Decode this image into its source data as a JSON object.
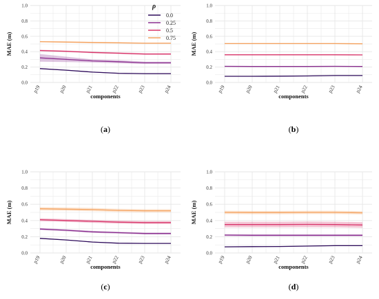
{
  "chart_data": [
    {
      "type": "line",
      "panel_label": "(a)",
      "xlabel": "components",
      "ylabel": "MAE (m)",
      "categories": [
        "p19",
        "p20",
        "p21",
        "p22",
        "p23",
        "p24"
      ],
      "ylim": [
        0,
        1.0
      ],
      "yticks": [
        "0.0",
        "0.2",
        "0.4",
        "0.6",
        "0.8",
        "1.0"
      ],
      "grid": true,
      "legend": {
        "title": "ρ",
        "placement": "top-right",
        "entries": [
          "0.0",
          "0.25",
          "0.5",
          "0.75"
        ]
      },
      "series": [
        {
          "name": "0.0",
          "values": [
            0.18,
            0.16,
            0.135,
            0.12,
            0.115,
            0.115
          ],
          "band": [
            0.005,
            0.005,
            0.005,
            0.005,
            0.005,
            0.005
          ]
        },
        {
          "name": "0.25",
          "values": [
            0.32,
            0.3,
            0.28,
            0.27,
            0.255,
            0.255
          ],
          "band": [
            0.05,
            0.035,
            0.02,
            0.02,
            0.015,
            0.015
          ]
        },
        {
          "name": "0.5",
          "values": [
            0.415,
            0.405,
            0.39,
            0.38,
            0.37,
            0.37
          ],
          "band": [
            0.01,
            0.01,
            0.01,
            0.01,
            0.01,
            0.01
          ]
        },
        {
          "name": "0.75",
          "values": [
            0.53,
            0.525,
            0.52,
            0.515,
            0.51,
            0.51
          ],
          "band": [
            0.008,
            0.008,
            0.008,
            0.008,
            0.008,
            0.008
          ]
        }
      ]
    },
    {
      "type": "line",
      "panel_label": "(b)",
      "xlabel": "components",
      "ylabel": "MAE (m)",
      "categories": [
        "p19",
        "p20",
        "p21",
        "p22",
        "p23",
        "p24"
      ],
      "ylim": [
        0,
        1.0
      ],
      "yticks": [
        "0.0",
        "0.2",
        "0.4",
        "0.6",
        "0.8",
        "1.0"
      ],
      "grid": true,
      "series": [
        {
          "name": "0.0",
          "values": [
            0.08,
            0.08,
            0.082,
            0.085,
            0.09,
            0.09
          ],
          "band": [
            0.003,
            0.003,
            0.003,
            0.003,
            0.003,
            0.003
          ]
        },
        {
          "name": "0.25",
          "values": [
            0.21,
            0.208,
            0.208,
            0.208,
            0.21,
            0.208
          ],
          "band": [
            0.006,
            0.006,
            0.006,
            0.006,
            0.006,
            0.006
          ]
        },
        {
          "name": "0.5",
          "values": [
            0.36,
            0.36,
            0.36,
            0.36,
            0.36,
            0.358
          ],
          "band": [
            0.006,
            0.006,
            0.006,
            0.006,
            0.006,
            0.006
          ]
        },
        {
          "name": "0.75",
          "values": [
            0.505,
            0.505,
            0.505,
            0.505,
            0.505,
            0.503
          ],
          "band": [
            0.006,
            0.006,
            0.006,
            0.006,
            0.006,
            0.006
          ]
        }
      ]
    },
    {
      "type": "line",
      "panel_label": "(c)",
      "xlabel": "components",
      "ylabel": "MAE (m)",
      "categories": [
        "p19",
        "p20",
        "p21",
        "p22",
        "p23",
        "p24"
      ],
      "ylim": [
        0,
        1.0
      ],
      "yticks": [
        "0.0",
        "0.2",
        "0.4",
        "0.6",
        "0.8",
        "1.0"
      ],
      "grid": true,
      "series": [
        {
          "name": "0.0",
          "values": [
            0.18,
            0.16,
            0.135,
            0.12,
            0.118,
            0.118
          ],
          "band": [
            0.004,
            0.004,
            0.004,
            0.004,
            0.004,
            0.004
          ]
        },
        {
          "name": "0.25",
          "values": [
            0.295,
            0.28,
            0.26,
            0.25,
            0.24,
            0.24
          ],
          "band": [
            0.012,
            0.012,
            0.012,
            0.012,
            0.012,
            0.012
          ]
        },
        {
          "name": "0.5",
          "values": [
            0.41,
            0.4,
            0.39,
            0.38,
            0.375,
            0.375
          ],
          "band": [
            0.018,
            0.018,
            0.018,
            0.018,
            0.018,
            0.018
          ]
        },
        {
          "name": "0.75",
          "values": [
            0.545,
            0.54,
            0.535,
            0.525,
            0.52,
            0.52
          ],
          "band": [
            0.02,
            0.02,
            0.02,
            0.02,
            0.02,
            0.02
          ]
        }
      ]
    },
    {
      "type": "line",
      "panel_label": "(d)",
      "xlabel": "components",
      "ylabel": "MAE (m)",
      "categories": [
        "p19",
        "p20",
        "p21",
        "p22",
        "p23",
        "p24"
      ],
      "ylim": [
        0,
        1.0
      ],
      "yticks": [
        "0.0",
        "0.2",
        "0.4",
        "0.6",
        "0.8",
        "1.0"
      ],
      "grid": true,
      "series": [
        {
          "name": "0.0",
          "values": [
            0.075,
            0.078,
            0.08,
            0.085,
            0.09,
            0.09
          ],
          "band": [
            0.004,
            0.004,
            0.004,
            0.004,
            0.004,
            0.004
          ]
        },
        {
          "name": "0.25",
          "values": [
            0.22,
            0.218,
            0.218,
            0.218,
            0.218,
            0.218
          ],
          "band": [
            0.012,
            0.012,
            0.012,
            0.012,
            0.012,
            0.012
          ]
        },
        {
          "name": "0.5",
          "values": [
            0.35,
            0.35,
            0.35,
            0.352,
            0.35,
            0.345
          ],
          "band": [
            0.035,
            0.035,
            0.035,
            0.035,
            0.035,
            0.035
          ]
        },
        {
          "name": "0.75",
          "values": [
            0.5,
            0.498,
            0.498,
            0.5,
            0.5,
            0.495
          ],
          "band": [
            0.02,
            0.02,
            0.02,
            0.02,
            0.02,
            0.02
          ]
        }
      ]
    }
  ],
  "colors": {
    "0.0": "#2d0a5a",
    "0.25": "#8a2e8f",
    "0.5": "#d8356a",
    "0.75": "#f4a15d",
    "grid": "#e6e6e6",
    "text": "#333333"
  }
}
